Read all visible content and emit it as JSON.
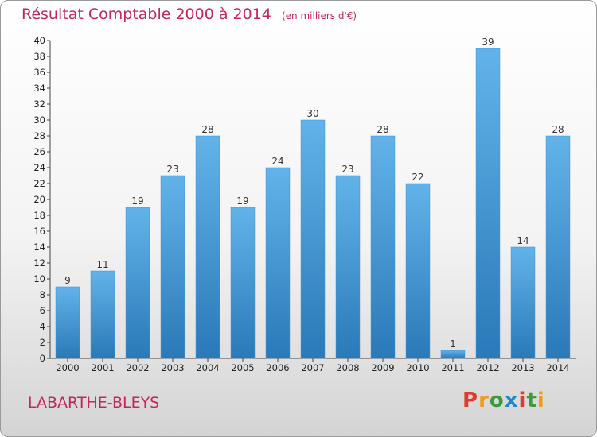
{
  "header": {
    "title": "Résultat Comptable 2000 à 2014",
    "subtitle": "(en milliers d'€)"
  },
  "footer": {
    "commune": "LABARTHE-BLEYS",
    "logo_text": "Proxiti"
  },
  "colors": {
    "title": "#c5265c",
    "bar_light": "#63b3ea",
    "bar_dark": "#2a79b8",
    "logo_letters": [
      "#e23b2e",
      "#f29a1a",
      "#3a9a3c",
      "#1e88d4",
      "#e23b2e",
      "#3a9a3c",
      "#f29a1a"
    ]
  },
  "chart_data": {
    "type": "bar",
    "title": "Résultat Comptable 2000 à 2014",
    "subtitle": "(en milliers d'€)",
    "xlabel": "",
    "ylabel": "",
    "categories": [
      "2000",
      "2001",
      "2002",
      "2003",
      "2004",
      "2005",
      "2006",
      "2007",
      "2008",
      "2009",
      "2010",
      "2011",
      "2012",
      "2013",
      "2014"
    ],
    "values": [
      9,
      11,
      19,
      23,
      28,
      19,
      24,
      30,
      23,
      28,
      22,
      1,
      39,
      14,
      28
    ],
    "ylim": [
      0,
      40
    ],
    "ytick_step": 2,
    "grid": false,
    "legend": "none"
  }
}
